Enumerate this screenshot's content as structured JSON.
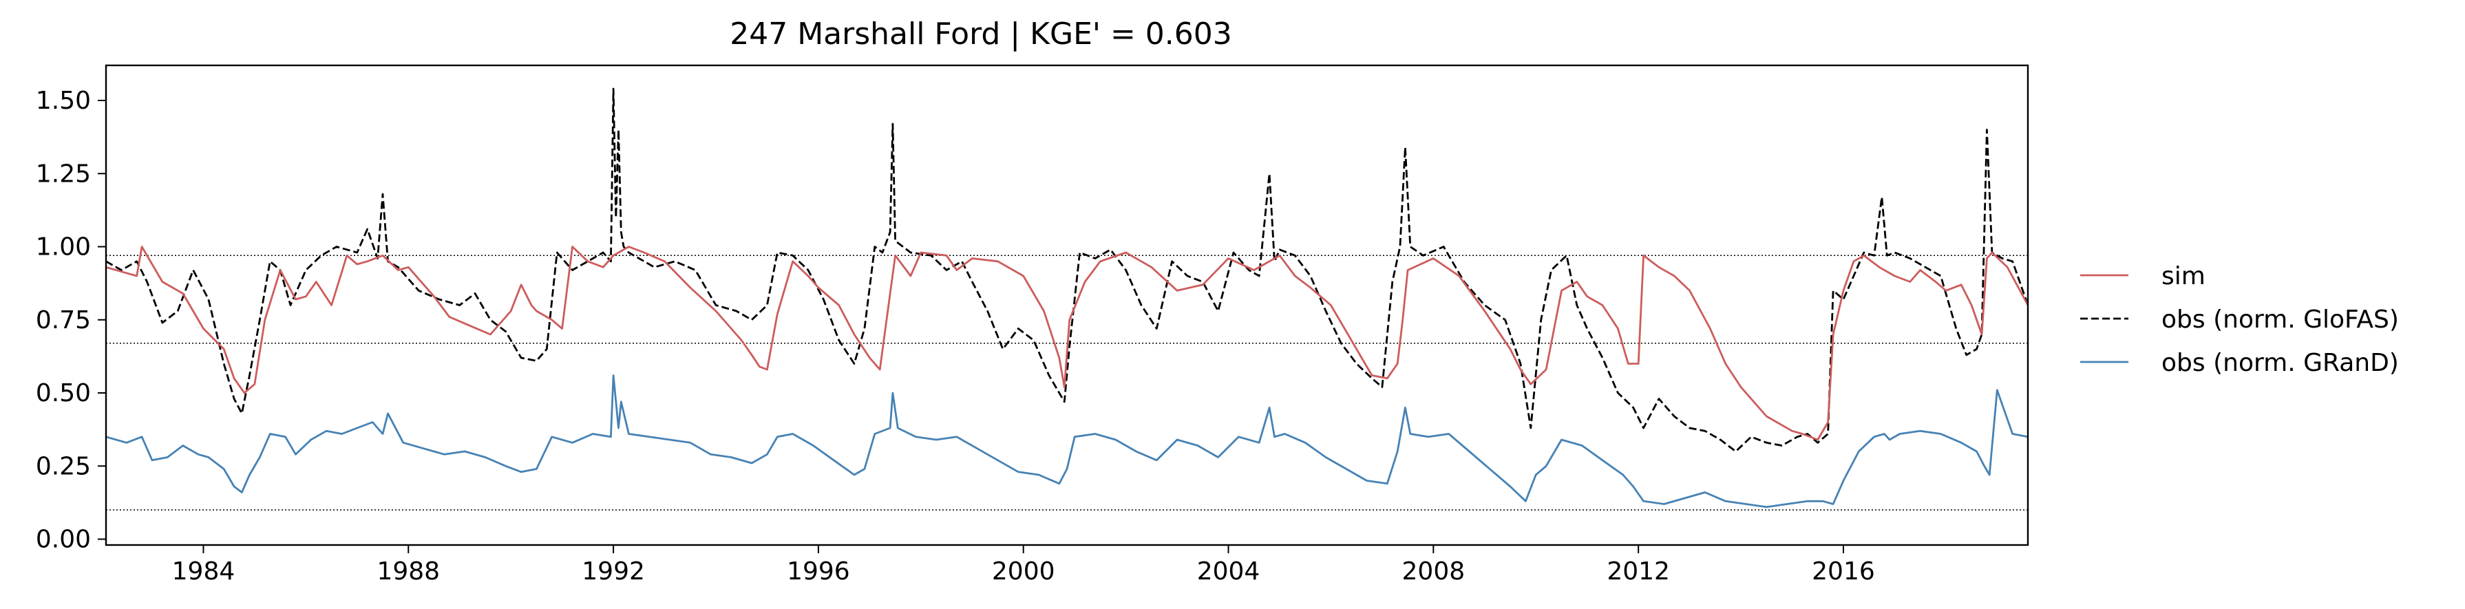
{
  "chart_data": {
    "type": "line",
    "title": "247  Marshall Ford | KGE' = 0.603",
    "xlabel": "",
    "ylabel": "",
    "xlim": [
      1982.1,
      2019.6
    ],
    "ylim": [
      -0.02,
      1.62
    ],
    "xticks": [
      1984,
      1988,
      1992,
      1996,
      2000,
      2004,
      2008,
      2012,
      2016
    ],
    "yticks": [
      "0.00",
      "0.25",
      "0.50",
      "0.75",
      "1.00",
      "1.25",
      "1.50"
    ],
    "hlines": [
      0.97,
      0.67,
      0.1
    ],
    "legend_position": "right, outside",
    "series": [
      {
        "name": "sim",
        "color": "#cd5c5c",
        "dash": "solid",
        "x": [
          1982.1,
          1982.5,
          1982.7,
          1982.8,
          1983.2,
          1983.6,
          1984.0,
          1984.4,
          1984.6,
          1984.8,
          1985.0,
          1985.2,
          1985.5,
          1985.8,
          1986.0,
          1986.2,
          1986.5,
          1986.8,
          1987.0,
          1987.2,
          1987.5,
          1987.8,
          1988.0,
          1988.5,
          1988.8,
          1989.2,
          1989.6,
          1990.0,
          1990.2,
          1990.4,
          1990.5,
          1990.8,
          1991.0,
          1991.2,
          1991.5,
          1991.8,
          1992.0,
          1992.3,
          1992.6,
          1993.0,
          1993.5,
          1994.0,
          1994.5,
          1994.7,
          1994.85,
          1995.0,
          1995.2,
          1995.5,
          1995.8,
          1996.0,
          1996.4,
          1996.7,
          1997.0,
          1997.2,
          1997.5,
          1997.8,
          1998.0,
          1998.5,
          1998.7,
          1999.0,
          1999.5,
          2000.0,
          2000.4,
          2000.7,
          2000.8,
          2000.9,
          2001.2,
          2001.5,
          2002.0,
          2002.5,
          2003.0,
          2003.5,
          2004.0,
          2004.5,
          2005.0,
          2005.3,
          2005.6,
          2006.0,
          2006.5,
          2006.8,
          2007.1,
          2007.3,
          2007.4,
          2007.5,
          2008.0,
          2008.5,
          2009.0,
          2009.5,
          2009.7,
          2009.9,
          2010.2,
          2010.5,
          2010.8,
          2011.0,
          2011.3,
          2011.6,
          2011.8,
          2012.0,
          2012.1,
          2012.4,
          2012.7,
          2013.0,
          2013.4,
          2013.7,
          2014.0,
          2014.5,
          2015.0,
          2015.2,
          2015.5,
          2015.7,
          2015.8,
          2016.0,
          2016.2,
          2016.4,
          2016.7,
          2017.0,
          2017.3,
          2017.5,
          2017.8,
          2018.0,
          2018.3,
          2018.5,
          2018.7,
          2018.8,
          2018.9,
          2019.2,
          2019.6
        ],
        "y": [
          0.93,
          0.91,
          0.9,
          1.0,
          0.88,
          0.84,
          0.72,
          0.65,
          0.55,
          0.5,
          0.53,
          0.75,
          0.92,
          0.82,
          0.83,
          0.88,
          0.8,
          0.97,
          0.94,
          0.95,
          0.97,
          0.92,
          0.93,
          0.83,
          0.76,
          0.73,
          0.7,
          0.78,
          0.87,
          0.8,
          0.78,
          0.75,
          0.72,
          1.0,
          0.95,
          0.93,
          0.97,
          1.0,
          0.98,
          0.95,
          0.86,
          0.78,
          0.68,
          0.63,
          0.59,
          0.58,
          0.77,
          0.95,
          0.9,
          0.86,
          0.8,
          0.7,
          0.62,
          0.58,
          0.97,
          0.9,
          0.98,
          0.97,
          0.92,
          0.96,
          0.95,
          0.9,
          0.78,
          0.62,
          0.52,
          0.75,
          0.88,
          0.95,
          0.98,
          0.93,
          0.85,
          0.87,
          0.96,
          0.92,
          0.97,
          0.9,
          0.86,
          0.8,
          0.65,
          0.56,
          0.55,
          0.6,
          0.75,
          0.92,
          0.96,
          0.9,
          0.78,
          0.65,
          0.58,
          0.53,
          0.58,
          0.85,
          0.88,
          0.83,
          0.8,
          0.72,
          0.6,
          0.6,
          0.97,
          0.93,
          0.9,
          0.85,
          0.72,
          0.6,
          0.52,
          0.42,
          0.37,
          0.36,
          0.34,
          0.4,
          0.7,
          0.85,
          0.95,
          0.97,
          0.93,
          0.9,
          0.88,
          0.92,
          0.88,
          0.85,
          0.87,
          0.8,
          0.7,
          0.96,
          0.98,
          0.93,
          0.8
        ]
      },
      {
        "name": "obs (norm. GloFAS)",
        "color": "#000000",
        "dash": "dashed",
        "x": [
          1982.1,
          1982.4,
          1982.7,
          1982.9,
          1983.2,
          1983.5,
          1983.8,
          1984.1,
          1984.4,
          1984.6,
          1984.75,
          1984.9,
          1985.1,
          1985.3,
          1985.5,
          1985.7,
          1986.0,
          1986.3,
          1986.6,
          1987.0,
          1987.2,
          1987.4,
          1987.5,
          1987.6,
          1987.8,
          1988.2,
          1988.6,
          1989.0,
          1989.3,
          1989.6,
          1989.9,
          1990.2,
          1990.5,
          1990.7,
          1990.9,
          1991.2,
          1991.5,
          1991.8,
          1991.95,
          1992.0,
          1992.05,
          1992.1,
          1992.15,
          1992.2,
          1992.3,
          1992.5,
          1992.8,
          1993.2,
          1993.6,
          1994.0,
          1994.4,
          1994.7,
          1995.0,
          1995.2,
          1995.5,
          1995.8,
          1996.1,
          1996.4,
          1996.7,
          1996.9,
          1997.1,
          1997.25,
          1997.4,
          1997.45,
          1997.5,
          1997.8,
          1998.2,
          1998.5,
          1998.8,
          1999.0,
          1999.3,
          1999.6,
          1999.9,
          2000.2,
          2000.5,
          2000.8,
          2000.9,
          2001.1,
          2001.4,
          2001.7,
          2002.0,
          2002.3,
          2002.6,
          2002.9,
          2003.2,
          2003.5,
          2003.8,
          2004.1,
          2004.4,
          2004.6,
          2004.8,
          2004.9,
          2005.0,
          2005.3,
          2005.6,
          2005.9,
          2006.2,
          2006.5,
          2006.8,
          2007.0,
          2007.2,
          2007.35,
          2007.45,
          2007.55,
          2007.8,
          2008.2,
          2008.6,
          2009.0,
          2009.4,
          2009.7,
          2009.9,
          2010.1,
          2010.3,
          2010.6,
          2010.8,
          2011.0,
          2011.3,
          2011.6,
          2011.9,
          2012.1,
          2012.4,
          2012.7,
          2013.0,
          2013.3,
          2013.6,
          2013.9,
          2014.2,
          2014.5,
          2014.8,
          2015.1,
          2015.3,
          2015.5,
          2015.7,
          2015.8,
          2016.0,
          2016.2,
          2016.4,
          2016.6,
          2016.75,
          2016.85,
          2017.0,
          2017.3,
          2017.6,
          2017.9,
          2018.2,
          2018.4,
          2018.6,
          2018.7,
          2018.8,
          2018.9,
          2019.1,
          2019.3,
          2019.6
        ],
        "y": [
          0.95,
          0.92,
          0.95,
          0.88,
          0.74,
          0.78,
          0.92,
          0.82,
          0.6,
          0.48,
          0.43,
          0.56,
          0.75,
          0.95,
          0.92,
          0.8,
          0.92,
          0.97,
          1.0,
          0.98,
          1.06,
          0.96,
          1.18,
          0.95,
          0.93,
          0.85,
          0.82,
          0.8,
          0.84,
          0.75,
          0.71,
          0.62,
          0.61,
          0.65,
          0.98,
          0.92,
          0.95,
          0.98,
          0.95,
          1.54,
          1.1,
          1.4,
          1.05,
          1.0,
          0.98,
          0.96,
          0.93,
          0.95,
          0.92,
          0.8,
          0.78,
          0.75,
          0.8,
          0.98,
          0.97,
          0.92,
          0.82,
          0.68,
          0.6,
          0.72,
          1.0,
          0.98,
          1.05,
          1.42,
          1.02,
          0.98,
          0.97,
          0.92,
          0.95,
          0.88,
          0.78,
          0.65,
          0.72,
          0.68,
          0.56,
          0.47,
          0.66,
          0.98,
          0.96,
          0.99,
          0.92,
          0.8,
          0.72,
          0.95,
          0.9,
          0.88,
          0.78,
          0.98,
          0.92,
          0.9,
          1.25,
          0.95,
          0.99,
          0.97,
          0.9,
          0.78,
          0.67,
          0.6,
          0.55,
          0.52,
          0.88,
          1.0,
          1.34,
          1.0,
          0.97,
          1.0,
          0.88,
          0.8,
          0.75,
          0.6,
          0.38,
          0.75,
          0.92,
          0.97,
          0.8,
          0.72,
          0.62,
          0.5,
          0.45,
          0.38,
          0.48,
          0.42,
          0.38,
          0.37,
          0.34,
          0.3,
          0.35,
          0.33,
          0.32,
          0.35,
          0.36,
          0.33,
          0.36,
          0.85,
          0.82,
          0.9,
          0.98,
          0.97,
          1.17,
          0.97,
          0.98,
          0.96,
          0.93,
          0.9,
          0.72,
          0.63,
          0.65,
          0.7,
          1.4,
          0.98,
          0.96,
          0.95,
          0.8
        ]
      },
      {
        "name": "obs (norm. GRanD)",
        "color": "#4682b4",
        "dash": "solid",
        "x": [
          1982.1,
          1982.5,
          1982.8,
          1983.0,
          1983.3,
          1983.6,
          1983.9,
          1984.1,
          1984.4,
          1984.6,
          1984.75,
          1984.9,
          1985.1,
          1985.3,
          1985.6,
          1985.8,
          1986.1,
          1986.4,
          1986.7,
          1987.0,
          1987.3,
          1987.5,
          1987.6,
          1987.9,
          1988.3,
          1988.7,
          1989.1,
          1989.5,
          1989.9,
          1990.2,
          1990.5,
          1990.8,
          1991.2,
          1991.6,
          1991.95,
          1992.0,
          1992.1,
          1992.15,
          1992.3,
          1992.7,
          1993.1,
          1993.5,
          1993.9,
          1994.3,
          1994.7,
          1995.0,
          1995.2,
          1995.5,
          1995.9,
          1996.3,
          1996.7,
          1996.9,
          1997.1,
          1997.4,
          1997.45,
          1997.55,
          1997.9,
          1998.3,
          1998.7,
          1999.1,
          1999.5,
          1999.9,
          2000.3,
          2000.7,
          2000.85,
          2001.0,
          2001.4,
          2001.8,
          2002.2,
          2002.6,
          2003.0,
          2003.4,
          2003.8,
          2004.2,
          2004.6,
          2004.8,
          2004.9,
          2005.1,
          2005.5,
          2005.9,
          2006.3,
          2006.7,
          2007.1,
          2007.3,
          2007.45,
          2007.55,
          2007.9,
          2008.3,
          2008.7,
          2009.1,
          2009.5,
          2009.8,
          2010.0,
          2010.2,
          2010.5,
          2010.9,
          2011.3,
          2011.7,
          2011.9,
          2012.1,
          2012.5,
          2012.9,
          2013.3,
          2013.7,
          2014.1,
          2014.5,
          2014.9,
          2015.3,
          2015.6,
          2015.8,
          2016.0,
          2016.3,
          2016.6,
          2016.8,
          2016.9,
          2017.1,
          2017.5,
          2017.9,
          2018.3,
          2018.6,
          2018.75,
          2018.85,
          2019.0,
          2019.3,
          2019.6
        ],
        "y": [
          0.35,
          0.33,
          0.35,
          0.27,
          0.28,
          0.32,
          0.29,
          0.28,
          0.24,
          0.18,
          0.16,
          0.22,
          0.28,
          0.36,
          0.35,
          0.29,
          0.34,
          0.37,
          0.36,
          0.38,
          0.4,
          0.36,
          0.43,
          0.33,
          0.31,
          0.29,
          0.3,
          0.28,
          0.25,
          0.23,
          0.24,
          0.35,
          0.33,
          0.36,
          0.35,
          0.56,
          0.38,
          0.47,
          0.36,
          0.35,
          0.34,
          0.33,
          0.29,
          0.28,
          0.26,
          0.29,
          0.35,
          0.36,
          0.32,
          0.27,
          0.22,
          0.24,
          0.36,
          0.38,
          0.5,
          0.38,
          0.35,
          0.34,
          0.35,
          0.31,
          0.27,
          0.23,
          0.22,
          0.19,
          0.24,
          0.35,
          0.36,
          0.34,
          0.3,
          0.27,
          0.34,
          0.32,
          0.28,
          0.35,
          0.33,
          0.45,
          0.35,
          0.36,
          0.33,
          0.28,
          0.24,
          0.2,
          0.19,
          0.3,
          0.45,
          0.36,
          0.35,
          0.36,
          0.3,
          0.24,
          0.18,
          0.13,
          0.22,
          0.25,
          0.34,
          0.32,
          0.27,
          0.22,
          0.18,
          0.13,
          0.12,
          0.14,
          0.16,
          0.13,
          0.12,
          0.11,
          0.12,
          0.13,
          0.13,
          0.12,
          0.2,
          0.3,
          0.35,
          0.36,
          0.34,
          0.36,
          0.37,
          0.36,
          0.33,
          0.3,
          0.25,
          0.22,
          0.51,
          0.36,
          0.35
        ]
      }
    ]
  }
}
